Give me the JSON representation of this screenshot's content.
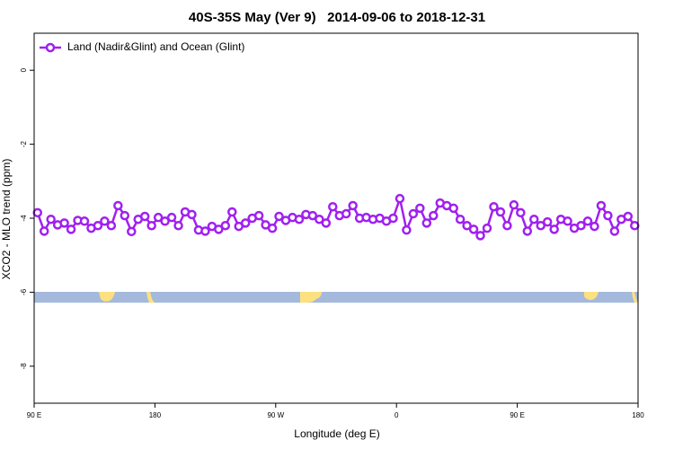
{
  "chart_data": {
    "type": "line",
    "title": "40S-35S May (Ver 9)   2014-09-06 to 2018-12-31",
    "xlabel": "Longitude (deg E)",
    "ylabel": "XCO2 - MLO trend (ppm)",
    "x": [
      92.5,
      97.5,
      102.5,
      107.5,
      112.5,
      117.5,
      122.5,
      127.5,
      132.5,
      137.5,
      142.5,
      147.5,
      152.5,
      157.5,
      162.5,
      167.5,
      172.5,
      177.5,
      182.5,
      187.5,
      192.5,
      197.5,
      202.5,
      207.5,
      212.5,
      217.5,
      222.5,
      227.5,
      232.5,
      237.5,
      242.5,
      247.5,
      252.5,
      257.5,
      262.5,
      267.5,
      272.5,
      277.5,
      282.5,
      287.5,
      292.5,
      297.5,
      302.5,
      307.5,
      312.5,
      317.5,
      322.5,
      327.5,
      332.5,
      337.5,
      342.5,
      347.5,
      352.5,
      357.5,
      362.5,
      367.5,
      372.5,
      377.5,
      382.5,
      387.5,
      392.5,
      397.5,
      402.5,
      407.5,
      412.5,
      417.5,
      422.5,
      427.5,
      432.5,
      437.5,
      442.5,
      447.5,
      452.5,
      457.5,
      462.5,
      467.5,
      472.5,
      477.5,
      482.5,
      487.5,
      492.5,
      497.5,
      502.5,
      507.5,
      512.5,
      517.5,
      522.5,
      527.5,
      532.5,
      537.5
    ],
    "series": [
      {
        "name": "Land (Nadir&Glint) and Ocean (Glint)",
        "color": "#a020f0",
        "values": [
          -3.85,
          -4.35,
          -4.03,
          -4.18,
          -4.13,
          -4.3,
          -4.06,
          -4.08,
          -4.27,
          -4.2,
          -4.08,
          -4.2,
          -3.66,
          -3.93,
          -4.36,
          -4.03,
          -3.95,
          -4.2,
          -3.98,
          -4.08,
          -3.98,
          -4.2,
          -3.83,
          -3.9,
          -4.32,
          -4.35,
          -4.22,
          -4.3,
          -4.2,
          -3.83,
          -4.22,
          -4.13,
          -4.0,
          -3.93,
          -4.18,
          -4.27,
          -3.95,
          -4.06,
          -3.98,
          -4.03,
          -3.9,
          -3.93,
          -4.03,
          -4.13,
          -3.69,
          -3.93,
          -3.88,
          -3.66,
          -4.0,
          -3.98,
          -4.03,
          -4.0,
          -4.08,
          -4.0,
          -3.47,
          -4.32,
          -3.88,
          -3.73,
          -4.13,
          -3.93,
          -3.59,
          -3.66,
          -3.73,
          -4.03,
          -4.2,
          -4.3,
          -4.47,
          -4.27,
          -3.69,
          -3.83,
          -4.2,
          -3.64,
          -3.85,
          -4.35,
          -4.03,
          -4.2,
          -4.1,
          -4.3,
          -4.03,
          -4.08,
          -4.27,
          -4.2,
          -4.08,
          -4.22,
          -3.66,
          -3.93,
          -4.35,
          -4.03,
          -3.95,
          -4.2
        ]
      }
    ],
    "xlim": [
      90,
      540
    ],
    "xticks": [
      {
        "value": 90,
        "label": "90 E"
      },
      180,
      {
        "value": 270,
        "label": "90 W"
      },
      {
        "value": 360,
        "label": "0"
      },
      {
        "value": 450,
        "label": "90 E"
      },
      {
        "value": 540,
        "label": "180"
      }
    ],
    "ylim": [
      -9,
      1
    ],
    "yticks": [
      0,
      -2,
      -4,
      -6,
      -8
    ],
    "legend": "top-left"
  }
}
